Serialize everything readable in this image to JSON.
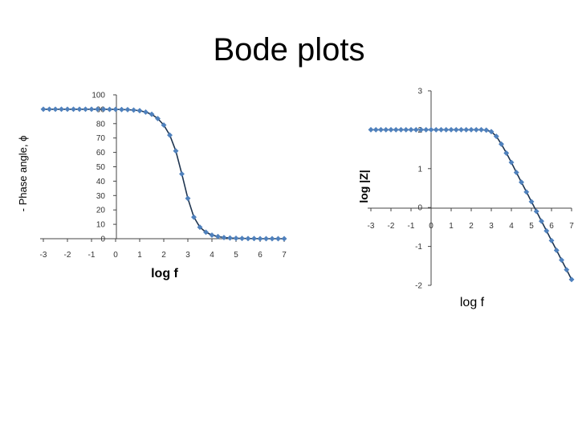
{
  "slide": {
    "title": "Bode plots"
  },
  "chart_data": [
    {
      "type": "line",
      "title": "",
      "xlabel": "log f",
      "ylabel": "- Phase angle, ϕ",
      "xlim": [
        -3,
        7
      ],
      "ylim": [
        0,
        100
      ],
      "xticks": [
        "-3",
        "-2",
        "-1",
        "0",
        "1",
        "2",
        "3",
        "4",
        "5",
        "6",
        "7"
      ],
      "yticks": [
        "0",
        "10",
        "20",
        "30",
        "40",
        "50",
        "60",
        "70",
        "80",
        "90",
        "100"
      ],
      "grid": false,
      "legend": "none",
      "color": "#4f81bd",
      "series": [
        {
          "x": [
            -3,
            -2.75,
            -2.5,
            -2.25,
            -2,
            -1.75,
            -1.5,
            -1.25,
            -1,
            -0.75,
            -0.5,
            -0.25,
            0,
            0.25,
            0.5,
            0.75,
            1,
            1.25,
            1.5,
            1.75,
            2,
            2.25,
            2.5,
            2.75,
            3,
            3.25,
            3.5,
            3.75,
            4,
            4.25,
            4.5,
            4.75,
            5,
            5.25,
            5.5,
            5.75,
            6,
            6.25,
            6.5,
            6.75,
            7
          ],
          "y": [
            90,
            90,
            90,
            90,
            90,
            90,
            90,
            90,
            90,
            90,
            90,
            89.9,
            89.9,
            89.8,
            89.7,
            89.4,
            89,
            88,
            86.5,
            83.5,
            79,
            72,
            61,
            45,
            28,
            15,
            8,
            4.5,
            2.5,
            1.5,
            0.8,
            0.5,
            0.3,
            0.2,
            0.1,
            0.1,
            0,
            0,
            0,
            0,
            0
          ]
        }
      ]
    },
    {
      "type": "line",
      "title": "",
      "xlabel": "log f",
      "ylabel": "log |Z|",
      "xlim": [
        -3,
        7
      ],
      "ylim": [
        -2,
        3
      ],
      "xticks": [
        "-3",
        "-2",
        "-1",
        "0",
        "1",
        "2",
        "3",
        "4",
        "5",
        "6",
        "7"
      ],
      "yticks": [
        "-2",
        "-1",
        "0",
        "1",
        "2",
        "3"
      ],
      "grid": false,
      "legend": "none",
      "color": "#4f81bd",
      "series": [
        {
          "x": [
            -3,
            -2.75,
            -2.5,
            -2.25,
            -2,
            -1.75,
            -1.5,
            -1.25,
            -1,
            -0.75,
            -0.5,
            -0.25,
            0,
            0.25,
            0.5,
            0.75,
            1,
            1.25,
            1.5,
            1.75,
            2,
            2.25,
            2.5,
            2.75,
            3,
            3.25,
            3.5,
            3.75,
            4,
            4.25,
            4.5,
            4.75,
            5,
            5.25,
            5.5,
            5.75,
            6,
            6.25,
            6.5,
            6.75,
            7
          ],
          "y": [
            2,
            2,
            2,
            2,
            2,
            2,
            2,
            2,
            2,
            2,
            2,
            2,
            2,
            2,
            2,
            2,
            2,
            2,
            2,
            2,
            2,
            2,
            2,
            1.99,
            1.95,
            1.83,
            1.63,
            1.4,
            1.16,
            0.9,
            0.65,
            0.4,
            0.15,
            -0.1,
            -0.35,
            -0.6,
            -0.85,
            -1.1,
            -1.35,
            -1.6,
            -1.85
          ]
        }
      ]
    }
  ]
}
